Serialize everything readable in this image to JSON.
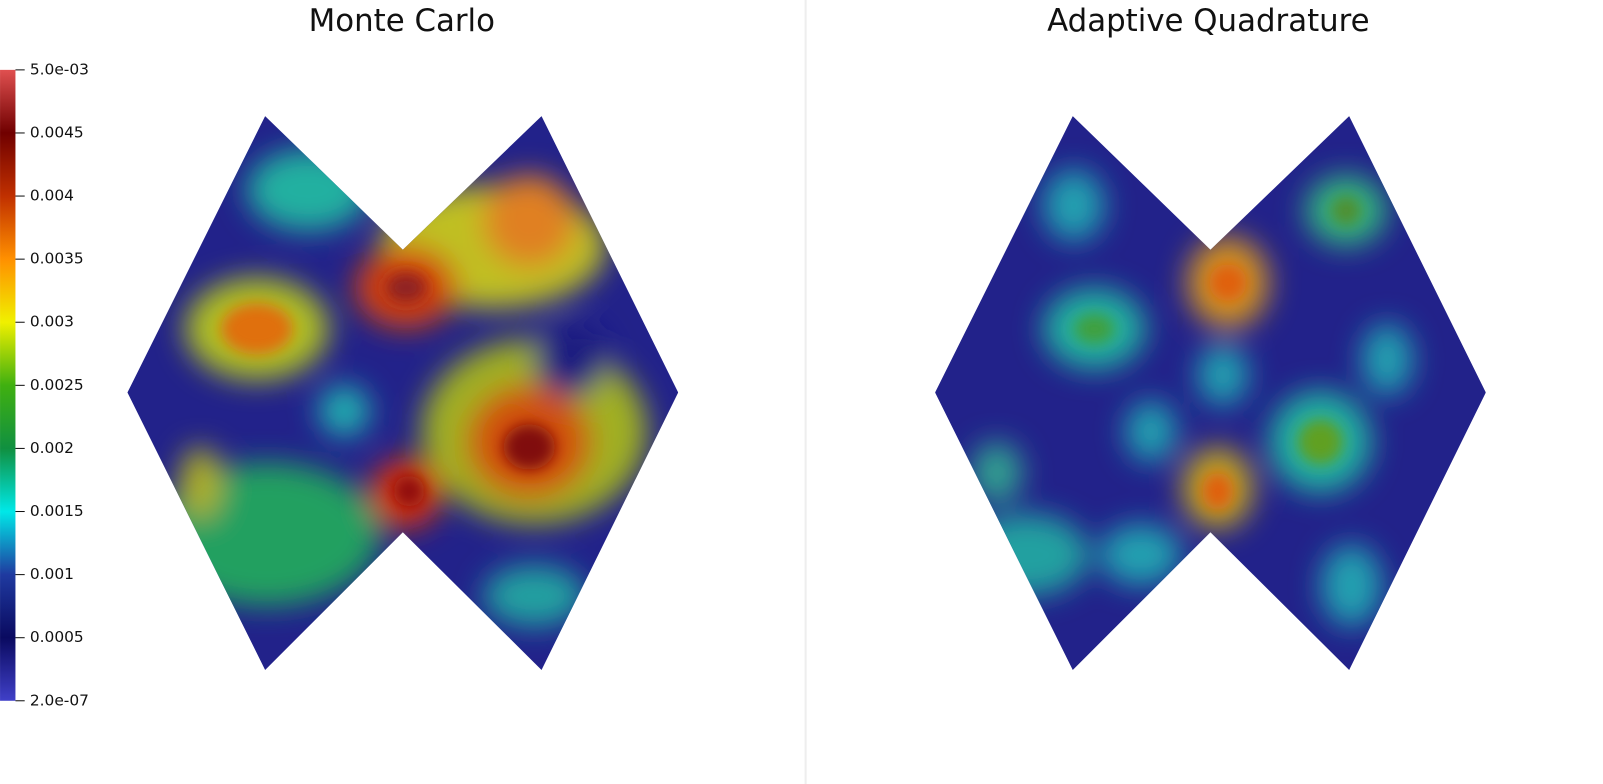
{
  "panels": [
    {
      "title": "Monte Carlo"
    },
    {
      "title": "Adaptive Quadrature"
    }
  ],
  "colorbar": {
    "range": [
      2e-07,
      0.005
    ],
    "ticks": [
      {
        "value": 0.005,
        "label": "5.0e-03"
      },
      0.0045,
      0.004,
      0.0035,
      0.003,
      0.0025,
      0.002,
      0.0015,
      0.001,
      0.0005,
      {
        "value": 2e-07,
        "label": "2.0e-07"
      }
    ]
  }
}
